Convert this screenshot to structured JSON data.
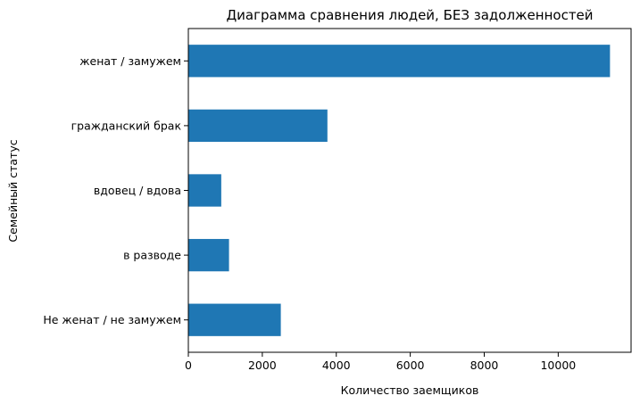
{
  "chart_data": {
    "type": "bar",
    "orientation": "horizontal",
    "title": "Диаграмма сравнения людей, БЕЗ задолженностей",
    "xlabel": "Количество заемщиков",
    "ylabel": "Семейный статус",
    "categories": [
      "Не женат / не замужем",
      "в разводе",
      "вдовец / вдова",
      "гражданский брак",
      "женат / замужем"
    ],
    "values": [
      2500,
      1100,
      890,
      3760,
      11400
    ],
    "xlim": [
      0,
      11970
    ],
    "xticks": [
      0,
      2000,
      4000,
      6000,
      8000,
      10000
    ],
    "grid": false,
    "legend": "none",
    "bar_color": "#1f77b4"
  }
}
